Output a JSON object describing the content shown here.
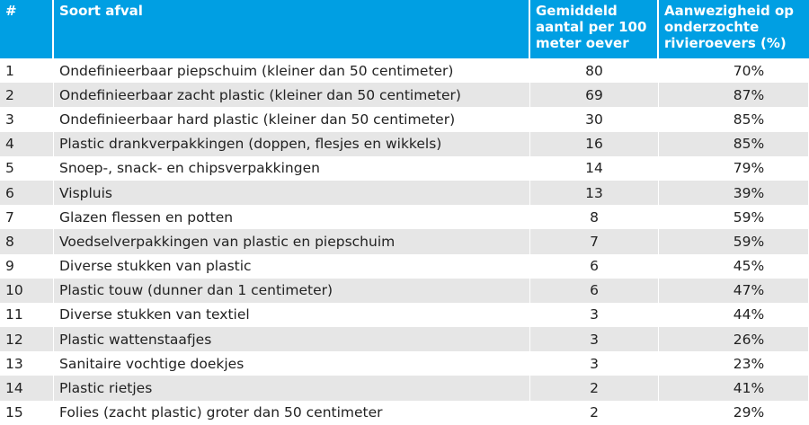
{
  "table": {
    "header": [
      "#",
      "Soort afval",
      "Gemiddeld aantal per 100 meter oever",
      "Aanwezigheid op onderzochte rivieroevers (%)"
    ],
    "rows": [
      [
        "1",
        "Ondefinieerbaar piepschuim (kleiner dan 50 centimeter)",
        "80",
        "70%"
      ],
      [
        "2",
        "Ondefinieerbaar zacht plastic (kleiner dan 50 centimeter)",
        "69",
        "87%"
      ],
      [
        "3",
        "Ondefinieerbaar hard plastic (kleiner dan 50 centimeter)",
        "30",
        "85%"
      ],
      [
        "4",
        "Plastic drankverpakkingen (doppen, flesjes en wikkels)",
        "16",
        "85%"
      ],
      [
        "5",
        "Snoep-, snack- en chipsverpakkingen",
        "14",
        "79%"
      ],
      [
        "6",
        "Vispluis",
        "13",
        "39%"
      ],
      [
        "7",
        "Glazen flessen en potten",
        "8",
        "59%"
      ],
      [
        "8",
        "Voedselverpakkingen van plastic en piepschuim",
        "7",
        "59%"
      ],
      [
        "9",
        "Diverse stukken van plastic",
        "6",
        "45%"
      ],
      [
        "10",
        "Plastic touw (dunner dan 1 centimeter)",
        "6",
        "47%"
      ],
      [
        "11",
        "Diverse stukken van textiel",
        "3",
        "44%"
      ],
      [
        "12",
        "Plastic wattenstaafjes",
        "3",
        "26%"
      ],
      [
        "13",
        "Sanitaire vochtige doekjes",
        "3",
        "23%"
      ],
      [
        "14",
        "Plastic rietjes",
        "2",
        "41%"
      ],
      [
        "15",
        "Folies (zacht plastic) groter dan 50 centimeter",
        "2",
        "29%"
      ]
    ]
  }
}
